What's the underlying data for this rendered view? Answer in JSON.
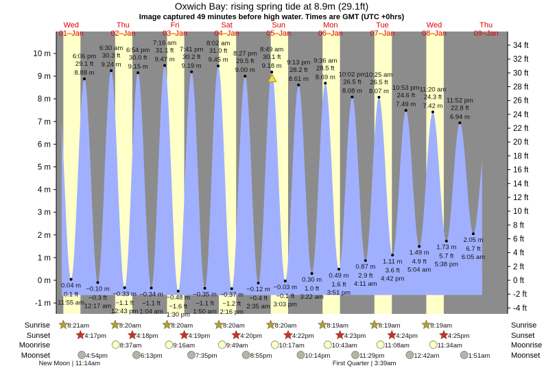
{
  "title": "Oxwich Bay: rising  spring tide at 8.9m (29.1ft)",
  "subtitle": "Image captured 49 minutes before high water. Times are GMT (UTC +0hrs)",
  "chart_data": {
    "type": "area",
    "title": "Oxwich Bay: rising  spring tide at 8.9m (29.1ft)",
    "ylim_m": [
      -1.6,
      10.8
    ],
    "left_axis_ticks": [
      "10 m",
      "9 m",
      "8 m",
      "7 m",
      "6 m",
      "5 m",
      "4 m",
      "3 m",
      "2 m",
      "1 m",
      "0 m",
      "-1 m"
    ],
    "right_axis_ticks": [
      "34 ft",
      "32 ft",
      "30 ft",
      "28 ft",
      "26 ft",
      "24 ft",
      "22 ft",
      "20 ft",
      "18 ft",
      "16 ft",
      "14 ft",
      "12 ft",
      "10 ft",
      "8 ft",
      "6 ft",
      "4 ft",
      "2 ft",
      "0 ft",
      "-2 ft",
      "-4 ft"
    ],
    "days": [
      {
        "name": "Wed",
        "date": "01–Jan"
      },
      {
        "name": "Thu",
        "date": "02–Jan"
      },
      {
        "name": "Fri",
        "date": "03–Jan"
      },
      {
        "name": "Sat",
        "date": "04–Jan"
      },
      {
        "name": "Sun",
        "date": "05–Jan"
      },
      {
        "name": "Mon",
        "date": "06–Jan"
      },
      {
        "name": "Tue",
        "date": "07–Jan"
      },
      {
        "name": "Wed",
        "date": "08–Jan"
      },
      {
        "name": "Thu",
        "date": "09–Jan"
      }
    ],
    "tides": [
      {
        "day": 1,
        "type": "low",
        "time": "11:55 am",
        "m": "0.04 m",
        "ft": "0.1 ft",
        "value": 0.04
      },
      {
        "day": 1,
        "type": "high",
        "time": "6:06 pm",
        "m": "8.88 m",
        "ft": "29.1 ft",
        "value": 8.88
      },
      {
        "day": 2,
        "type": "low",
        "time": "12:17 am",
        "m": "−0.10 m",
        "ft": "−0.3 ft",
        "value": -0.1
      },
      {
        "day": 2,
        "type": "high",
        "time": "6:30 am",
        "m": "9.24 m",
        "ft": "30.3 ft",
        "value": 9.24
      },
      {
        "day": 2,
        "type": "low",
        "time": "12:43 pm",
        "m": "−0.33 m",
        "ft": "−1.1 ft",
        "value": -0.33
      },
      {
        "day": 2,
        "type": "high",
        "time": "6:54 pm",
        "m": "9.15 m",
        "ft": "30.0 ft",
        "value": 9.15
      },
      {
        "day": 3,
        "type": "low",
        "time": "1:04 am",
        "m": "−0.34 m",
        "ft": "−1.1 ft",
        "value": -0.34
      },
      {
        "day": 3,
        "type": "high",
        "time": "7:16 am",
        "m": "9.47 m",
        "ft": "31.1 ft",
        "value": 9.47
      },
      {
        "day": 3,
        "type": "low",
        "time": "1:30 pm",
        "m": "−0.48 m",
        "ft": "−1.6 ft",
        "value": -0.48
      },
      {
        "day": 3,
        "type": "high",
        "time": "7:41 pm",
        "m": "9.19 m",
        "ft": "30.2 ft",
        "value": 9.19
      },
      {
        "day": 4,
        "type": "low",
        "time": "1:50 am",
        "m": "−0.35 m",
        "ft": "−1.1 ft",
        "value": -0.35
      },
      {
        "day": 4,
        "type": "high",
        "time": "8:02 am",
        "m": "9.45 m",
        "ft": "31.0 ft",
        "value": 9.45
      },
      {
        "day": 4,
        "type": "low",
        "time": "2:16 pm",
        "m": "−0.37 m",
        "ft": "−1.2 ft",
        "value": -0.37
      },
      {
        "day": 4,
        "type": "high",
        "time": "8:27 pm",
        "m": "9.00 m",
        "ft": "29.5 ft",
        "value": 9.0
      },
      {
        "day": 5,
        "type": "low",
        "time": "2:35 am",
        "m": "−0.12 m",
        "ft": "−0.4 ft",
        "value": -0.12
      },
      {
        "day": 5,
        "type": "high",
        "time": "8:49 am",
        "m": "9.18 m",
        "ft": "30.1 ft",
        "value": 9.18
      },
      {
        "day": 5,
        "type": "low",
        "time": "3:03 pm",
        "m": "−0.03 m",
        "ft": "−0.1 ft",
        "value": -0.03
      },
      {
        "day": 5,
        "type": "high",
        "time": "9:13 pm",
        "m": "8.61 m",
        "ft": "28.2 ft",
        "value": 8.61
      },
      {
        "day": 6,
        "type": "low",
        "time": "3:22 am",
        "m": "0.30 m",
        "ft": "1.0 ft",
        "value": 0.3
      },
      {
        "day": 6,
        "type": "high",
        "time": "9:36 am",
        "m": "8.69 m",
        "ft": "28.5 ft",
        "value": 8.69
      },
      {
        "day": 6,
        "type": "low",
        "time": "3:51 pm",
        "m": "0.49 m",
        "ft": "1.6 ft",
        "value": 0.49
      },
      {
        "day": 6,
        "type": "high",
        "time": "10:02 pm",
        "m": "8.08 m",
        "ft": "26.5 ft",
        "value": 8.08
      },
      {
        "day": 7,
        "type": "low",
        "time": "4:11 am",
        "m": "0.87 m",
        "ft": "2.9 ft",
        "value": 0.87
      },
      {
        "day": 7,
        "type": "high",
        "time": "10:25 am",
        "m": "8.07 m",
        "ft": "26.5 ft",
        "value": 8.07
      },
      {
        "day": 7,
        "type": "low",
        "time": "4:42 pm",
        "m": "1.11 m",
        "ft": "3.6 ft",
        "value": 1.11
      },
      {
        "day": 7,
        "type": "high",
        "time": "10:53 pm",
        "m": "7.49 m",
        "ft": "24.6 ft",
        "value": 7.49
      },
      {
        "day": 8,
        "type": "low",
        "time": "5:04 am",
        "m": "1.49 m",
        "ft": "4.9 ft",
        "value": 1.49
      },
      {
        "day": 8,
        "type": "high",
        "time": "11:20 am",
        "m": "7.42 m",
        "ft": "24.3 ft",
        "value": 7.42
      },
      {
        "day": 8,
        "type": "low",
        "time": "5:38 pm",
        "m": "1.73 m",
        "ft": "5.7 ft",
        "value": 1.73
      },
      {
        "day": 8,
        "type": "high",
        "time": "11:52 pm",
        "m": "6.94 m",
        "ft": "22.8 ft",
        "value": 6.94
      },
      {
        "day": 9,
        "type": "low",
        "time": "6:05 am",
        "m": "2.05 m",
        "ft": "6.7 ft",
        "value": 2.05
      }
    ],
    "current": {
      "day": 5,
      "time": "8:00 am",
      "value": 8.9
    },
    "colors": {
      "water": "#a0b0ff",
      "night": "#8c8c8c",
      "daylight": "#ffffc8",
      "day_labels": "#e00000",
      "sunrise": "#b0a030",
      "sunset": "#d03020",
      "moonrise": "#ffffc0",
      "moonset": "#b4b4a8",
      "current_marker": "#f0e040"
    }
  },
  "rows": {
    "labels": {
      "sunrise": "Sunrise",
      "sunset": "Sunset",
      "moonrise": "Moonrise",
      "moonset": "Moonset"
    },
    "sunrise": [
      {
        "day": 1,
        "time": "8:21am"
      },
      {
        "day": 2,
        "time": "8:20am"
      },
      {
        "day": 3,
        "time": "8:20am"
      },
      {
        "day": 4,
        "time": "8:20am"
      },
      {
        "day": 5,
        "time": "8:20am"
      },
      {
        "day": 6,
        "time": "8:19am"
      },
      {
        "day": 7,
        "time": "8:19am"
      },
      {
        "day": 8,
        "time": "8:19am"
      }
    ],
    "sunset": [
      {
        "day": 1,
        "time": "4:17pm"
      },
      {
        "day": 2,
        "time": "4:18pm"
      },
      {
        "day": 3,
        "time": "4:19pm"
      },
      {
        "day": 4,
        "time": "4:20pm"
      },
      {
        "day": 5,
        "time": "4:22pm"
      },
      {
        "day": 6,
        "time": "4:23pm"
      },
      {
        "day": 7,
        "time": "4:24pm"
      },
      {
        "day": 8,
        "time": "4:25pm"
      }
    ],
    "moonrise": [
      {
        "day": 2,
        "time": "8:37am"
      },
      {
        "day": 3,
        "time": "9:16am"
      },
      {
        "day": 4,
        "time": "9:49am"
      },
      {
        "day": 5,
        "time": "10:17am"
      },
      {
        "day": 6,
        "time": "10:43am"
      },
      {
        "day": 7,
        "time": "11:08am"
      },
      {
        "day": 8,
        "time": "11:34am"
      }
    ],
    "moonset": [
      {
        "day": 1,
        "time": "4:54pm"
      },
      {
        "day": 2,
        "time": "6:13pm"
      },
      {
        "day": 3,
        "time": "7:35pm"
      },
      {
        "day": 4,
        "time": "8:55pm"
      },
      {
        "day": 5,
        "time": "10:14pm"
      },
      {
        "day": 6,
        "time": "11:29pm"
      },
      {
        "day": 8,
        "time": "12:42am"
      },
      {
        "day": 9,
        "time": "1:51am"
      }
    ],
    "phases": [
      {
        "day": 1,
        "time": "11:14am",
        "text": "New Moon | 11:14am"
      },
      {
        "day": 7,
        "time": "3:39am",
        "text": "First Quarter | 3:39am"
      }
    ]
  }
}
